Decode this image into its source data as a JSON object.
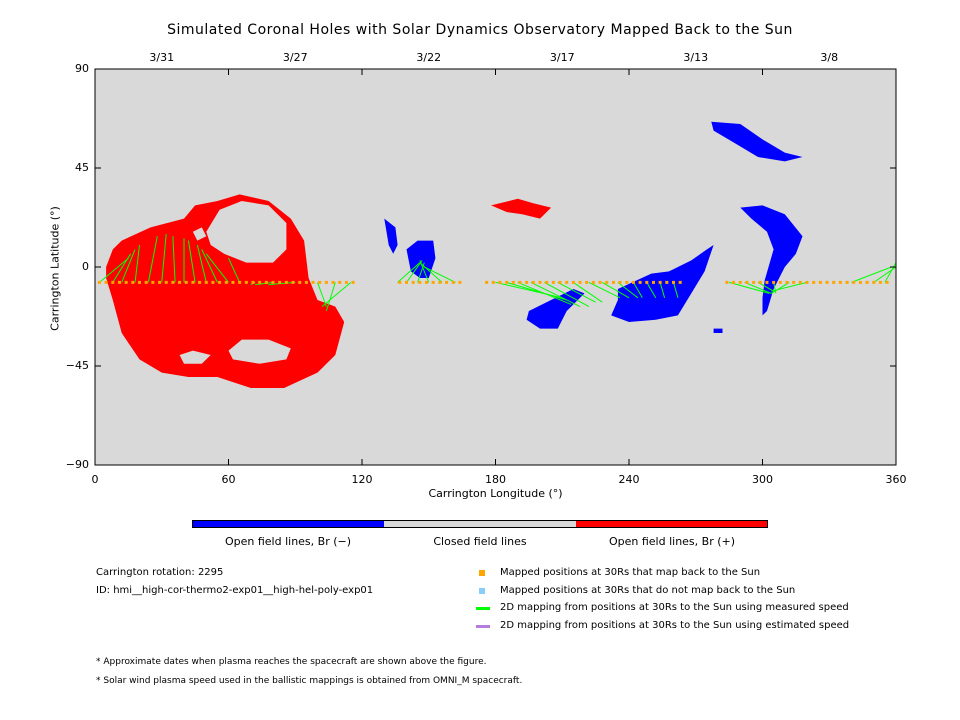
{
  "colors": {
    "background": "#d9d9d9",
    "open_negative": "#0000ff",
    "open_positive": "#ff0000",
    "closed": "#d9d9d9",
    "mapped_point": "#ffa500",
    "unmapped_point": "#87cefa",
    "measured_line": "#00ff00",
    "estimated_line": "#b57edc"
  },
  "chart_data": {
    "type": "scatter",
    "title": "Simulated Coronal Holes with Solar Dynamics Observatory Mapped Back to the Sun",
    "xlabel": "Carrington Longitude (°)",
    "ylabel": "Carrington Latitude (°)",
    "xlim": [
      0,
      360
    ],
    "ylim": [
      -90,
      90
    ],
    "x_ticks": [
      "0",
      "60",
      "120",
      "180",
      "240",
      "300",
      "360"
    ],
    "y_ticks": [
      "90",
      "45",
      "0",
      "−45",
      "−90"
    ],
    "top_axis_dates": [
      {
        "label": "3/31",
        "lon": 30
      },
      {
        "label": "3/27",
        "lon": 90
      },
      {
        "label": "3/22",
        "lon": 150
      },
      {
        "label": "3/17",
        "lon": 210
      },
      {
        "label": "3/13",
        "lon": 270
      },
      {
        "label": "3/8",
        "lon": 330
      }
    ],
    "coronal_holes": [
      {
        "polarity": "positive",
        "polygon": [
          [
            5,
            0
          ],
          [
            8,
            8
          ],
          [
            12,
            12
          ],
          [
            25,
            18
          ],
          [
            40,
            22
          ],
          [
            45,
            28
          ],
          [
            55,
            30
          ],
          [
            65,
            33
          ],
          [
            78,
            30
          ],
          [
            88,
            22
          ],
          [
            94,
            12
          ],
          [
            96,
            -5
          ],
          [
            100,
            -15
          ],
          [
            108,
            -18
          ],
          [
            112,
            -25
          ],
          [
            108,
            -40
          ],
          [
            100,
            -48
          ],
          [
            85,
            -55
          ],
          [
            70,
            -55
          ],
          [
            55,
            -50
          ],
          [
            42,
            -50
          ],
          [
            30,
            -48
          ],
          [
            20,
            -42
          ],
          [
            12,
            -30
          ],
          [
            8,
            -15
          ],
          [
            5,
            -5
          ]
        ]
      },
      {
        "polarity": "positive",
        "polygon": [
          [
            178,
            28
          ],
          [
            190,
            31
          ],
          [
            197,
            29
          ],
          [
            205,
            27
          ],
          [
            200,
            22
          ],
          [
            192,
            24
          ],
          [
            185,
            25
          ]
        ]
      },
      {
        "polarity": "negative",
        "polygon": [
          [
            130,
            22
          ],
          [
            135,
            18
          ],
          [
            136,
            10
          ],
          [
            134,
            6
          ],
          [
            132,
            10
          ],
          [
            131,
            16
          ]
        ]
      },
      {
        "polarity": "negative",
        "polygon": [
          [
            140,
            8
          ],
          [
            145,
            12
          ],
          [
            152,
            12
          ],
          [
            153,
            4
          ],
          [
            150,
            -5
          ],
          [
            146,
            -5
          ],
          [
            142,
            -2
          ]
        ]
      },
      {
        "polarity": "negative",
        "polygon": [
          [
            195,
            -20
          ],
          [
            205,
            -15
          ],
          [
            215,
            -10
          ],
          [
            220,
            -12
          ],
          [
            212,
            -20
          ],
          [
            208,
            -28
          ],
          [
            200,
            -28
          ],
          [
            194,
            -24
          ]
        ]
      },
      {
        "polarity": "negative",
        "polygon": [
          [
            235,
            -10
          ],
          [
            250,
            -3
          ],
          [
            258,
            -2
          ],
          [
            262,
            0
          ],
          [
            268,
            3
          ],
          [
            275,
            8
          ],
          [
            278,
            10
          ],
          [
            274,
            -2
          ],
          [
            268,
            -12
          ],
          [
            262,
            -22
          ],
          [
            252,
            -24
          ],
          [
            240,
            -25
          ],
          [
            232,
            -22
          ],
          [
            235,
            -15
          ]
        ]
      },
      {
        "polarity": "negative",
        "polygon": [
          [
            277,
            66
          ],
          [
            290,
            65
          ],
          [
            300,
            58
          ],
          [
            310,
            52
          ],
          [
            318,
            50
          ],
          [
            310,
            48
          ],
          [
            298,
            50
          ],
          [
            288,
            56
          ],
          [
            278,
            62
          ]
        ]
      },
      {
        "polarity": "negative",
        "polygon": [
          [
            290,
            27
          ],
          [
            300,
            28
          ],
          [
            310,
            24
          ],
          [
            318,
            14
          ],
          [
            315,
            6
          ],
          [
            310,
            0
          ],
          [
            305,
            -10
          ],
          [
            302,
            -20
          ],
          [
            300,
            -22
          ],
          [
            300,
            -14
          ],
          [
            301,
            -6
          ],
          [
            305,
            8
          ],
          [
            302,
            16
          ],
          [
            295,
            22
          ]
        ]
      },
      {
        "polarity": "negative",
        "polygon": [
          [
            278,
            -28
          ],
          [
            282,
            -28
          ],
          [
            282,
            -30
          ],
          [
            278,
            -30
          ]
        ]
      }
    ],
    "mapped_longitudes_note": "Orange mapped points along ~-7° latitude; green lines connect them to coronal hole footpoints",
    "footpoint_lines": [
      [
        [
          2,
          -7
        ],
        [
          15,
          4
        ]
      ],
      [
        [
          8,
          -7
        ],
        [
          16,
          6
        ]
      ],
      [
        [
          12,
          -7
        ],
        [
          18,
          8
        ]
      ],
      [
        [
          18,
          -7
        ],
        [
          20,
          10
        ]
      ],
      [
        [
          24,
          -7
        ],
        [
          28,
          14
        ]
      ],
      [
        [
          30,
          -7
        ],
        [
          32,
          15
        ]
      ],
      [
        [
          36,
          -7
        ],
        [
          35,
          14
        ]
      ],
      [
        [
          40,
          -7
        ],
        [
          40,
          13
        ]
      ],
      [
        [
          45,
          -7
        ],
        [
          42,
          12
        ]
      ],
      [
        [
          50,
          -7
        ],
        [
          46,
          10
        ]
      ],
      [
        [
          55,
          -7
        ],
        [
          48,
          8
        ]
      ],
      [
        [
          60,
          -7
        ],
        [
          50,
          6
        ]
      ],
      [
        [
          65,
          -7
        ],
        [
          60,
          4
        ]
      ],
      [
        [
          72,
          -7
        ],
        [
          70,
          -8
        ]
      ],
      [
        [
          80,
          -7
        ],
        [
          72,
          -8
        ]
      ],
      [
        [
          90,
          -7
        ],
        [
          78,
          -8
        ]
      ],
      [
        [
          100,
          -7
        ],
        [
          104,
          -18
        ]
      ],
      [
        [
          108,
          -7
        ],
        [
          104,
          -20
        ]
      ],
      [
        [
          115,
          -7
        ],
        [
          102,
          -18
        ]
      ],
      [
        [
          136,
          -7
        ],
        [
          146,
          2
        ]
      ],
      [
        [
          140,
          -7
        ],
        [
          147,
          3
        ]
      ],
      [
        [
          145,
          -7
        ],
        [
          148,
          2
        ]
      ],
      [
        [
          150,
          -7
        ],
        [
          146,
          3
        ]
      ],
      [
        [
          156,
          -7
        ],
        [
          146,
          2
        ]
      ],
      [
        [
          162,
          -7
        ],
        [
          148,
          0
        ]
      ],
      [
        [
          180,
          -7
        ],
        [
          210,
          -14
        ]
      ],
      [
        [
          185,
          -7
        ],
        [
          212,
          -15
        ]
      ],
      [
        [
          190,
          -7
        ],
        [
          214,
          -17
        ]
      ],
      [
        [
          196,
          -7
        ],
        [
          218,
          -18
        ]
      ],
      [
        [
          202,
          -7
        ],
        [
          222,
          -18
        ]
      ],
      [
        [
          208,
          -7
        ],
        [
          225,
          -16
        ]
      ],
      [
        [
          215,
          -7
        ],
        [
          228,
          -16
        ]
      ],
      [
        [
          222,
          -7
        ],
        [
          236,
          -14
        ]
      ],
      [
        [
          228,
          -7
        ],
        [
          240,
          -14
        ]
      ],
      [
        [
          235,
          -7
        ],
        [
          244,
          -14
        ]
      ],
      [
        [
          242,
          -7
        ],
        [
          246,
          -14
        ]
      ],
      [
        [
          248,
          -7
        ],
        [
          252,
          -14
        ]
      ],
      [
        [
          254,
          -7
        ],
        [
          256,
          -14
        ]
      ],
      [
        [
          260,
          -7
        ],
        [
          262,
          -14
        ]
      ],
      [
        [
          285,
          -7
        ],
        [
          303,
          -12
        ]
      ],
      [
        [
          292,
          -7
        ],
        [
          304,
          -12
        ]
      ],
      [
        [
          298,
          -7
        ],
        [
          305,
          -11
        ]
      ],
      [
        [
          305,
          -7
        ],
        [
          306,
          -12
        ]
      ],
      [
        [
          312,
          -7
        ],
        [
          304,
          -12
        ]
      ],
      [
        [
          320,
          -7
        ],
        [
          304,
          -11
        ]
      ],
      [
        [
          340,
          -7
        ],
        [
          358,
          0
        ]
      ],
      [
        [
          350,
          -7
        ],
        [
          360,
          0
        ]
      ],
      [
        [
          355,
          -7
        ],
        [
          360,
          2
        ]
      ]
    ]
  },
  "legend": {
    "neg_label": "Open field lines, Br (−)",
    "closed_label": "Closed field lines",
    "pos_label": "Open field lines, Br (+)",
    "mapped_label": "Mapped positions at 30Rs that map back to the Sun",
    "unmapped_label": "Mapped positions at 30Rs that do not map back to the Sun",
    "measured_label": "2D mapping from positions at 30Rs to the Sun using measured speed",
    "estimated_label": "2D mapping from positions at 30Rs to the Sun using estimated speed"
  },
  "info": {
    "rotation": "Carrington rotation: 2295",
    "id": "ID: hmi__high-cor-thermo2-exp01__high-hel-poly-exp01"
  },
  "footnotes": {
    "note1": "* Approximate dates when plasma reaches the spacecraft are shown above the figure.",
    "note2": "* Solar wind plasma speed used in the ballistic mappings is obtained from OMNI_M spacecraft."
  }
}
